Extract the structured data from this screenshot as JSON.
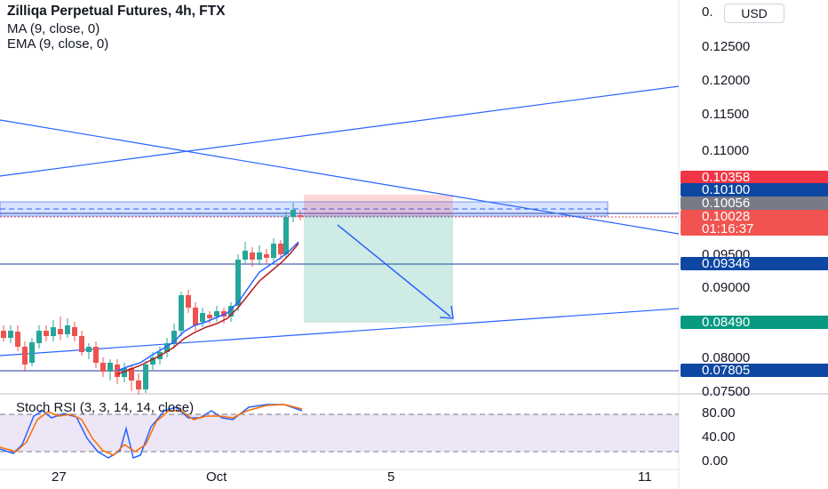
{
  "chart": {
    "title": "Zilliqa Perpetual Futures, 4h, FTX",
    "indicators": [
      "MA (9, close, 0)",
      "EMA (9, close, 0)"
    ],
    "currency": "USD",
    "oscillator_label": "Stoch RSI (3, 3, 14, 14, close)"
  },
  "price_axis": {
    "top_label": "0.",
    "ticks": [
      "0.12500",
      "0.12000",
      "0.11500",
      "0.11000",
      "0.09500",
      "0.09000",
      "0.08000",
      "0.07500"
    ]
  },
  "price_badges": [
    {
      "text": "0.10358",
      "bg": "#f23645"
    },
    {
      "text": "0.10100",
      "bg": "#0d47a1"
    },
    {
      "text": "0.10056",
      "bg": "#787b86"
    },
    {
      "text": "0.10028",
      "bg": "#f05350"
    },
    {
      "text": "01:16:37",
      "bg": "#f05350"
    },
    {
      "text": "0.09346",
      "bg": "#0d47a1"
    },
    {
      "text": "0.08490",
      "bg": "#089981"
    },
    {
      "text": "0.07805",
      "bg": "#0d47a1"
    }
  ],
  "osc_axis": {
    "ticks": [
      "80.00",
      "40.00",
      "0.00"
    ]
  },
  "time_axis": {
    "ticks": [
      "27",
      "Oct",
      "5",
      "11"
    ]
  },
  "colors": {
    "up": "#26a69a",
    "down": "#ef5350",
    "ma": "#2962ff",
    "ema": "#b71c1c",
    "stoch_k": "#2962ff",
    "stoch_d": "#ff6d00"
  }
}
